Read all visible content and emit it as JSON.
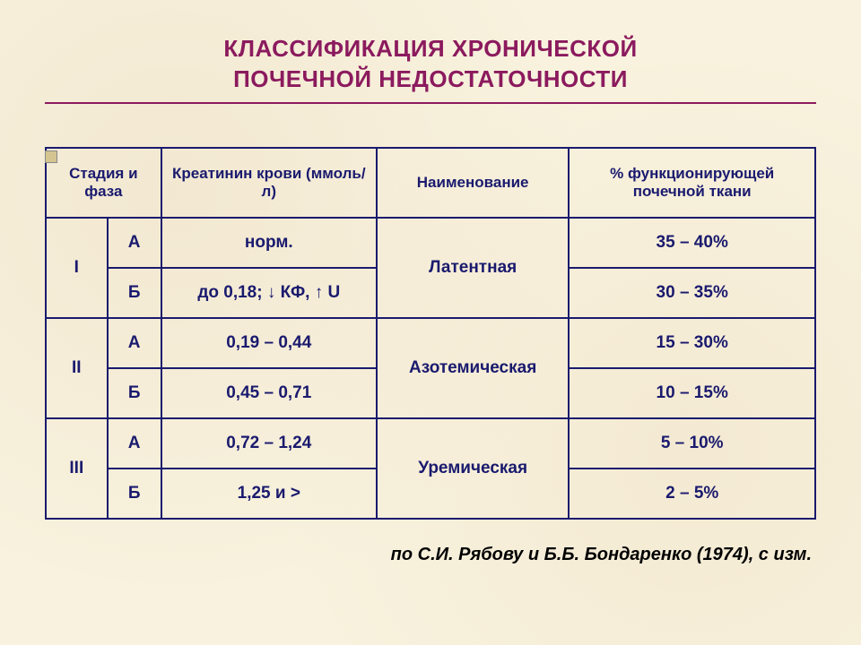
{
  "title_line1": "КЛАССИФИКАЦИЯ ХРОНИЧЕСКОЙ",
  "title_line2": "ПОЧЕЧНОЙ НЕДОСТАТОЧНОСТИ",
  "table": {
    "type": "table",
    "headers": {
      "stage": "Стадия и фаза",
      "creatinine": "Креатинин крови (ммоль/л)",
      "name": "Наименование",
      "percent": "% функционирующей почечной ткани"
    },
    "groups": [
      {
        "stage": "I",
        "name": "Латентная",
        "rows": [
          {
            "phase": "А",
            "creatinine": "норм.",
            "percent": "35 – 40%"
          },
          {
            "phase": "Б",
            "creatinine": "до 0,18; ↓ КФ, ↑ U",
            "percent": "30 – 35%"
          }
        ]
      },
      {
        "stage": "II",
        "name": "Азотемическая",
        "rows": [
          {
            "phase": "А",
            "creatinine": "0,19 – 0,44",
            "percent": "15 – 30%"
          },
          {
            "phase": "Б",
            "creatinine": "0,45 – 0,71",
            "percent": "10 – 15%"
          }
        ]
      },
      {
        "stage": "III",
        "name": "Уремическая",
        "rows": [
          {
            "phase": "А",
            "creatinine": "0,72 – 1,24",
            "percent": "5 – 10%"
          },
          {
            "phase": "Б",
            "creatinine": "1,25 и >",
            "percent": "2 – 5%"
          }
        ]
      }
    ],
    "colors": {
      "border": "#1a1a6e",
      "text": "#1a1a6e",
      "title_text": "#8b1a5e",
      "background": "#f8f2de"
    },
    "fontsize_header": 17,
    "fontsize_cell": 19
  },
  "footer": "по С.И. Рябову и Б.Б. Бондаренко (1974), с изм."
}
